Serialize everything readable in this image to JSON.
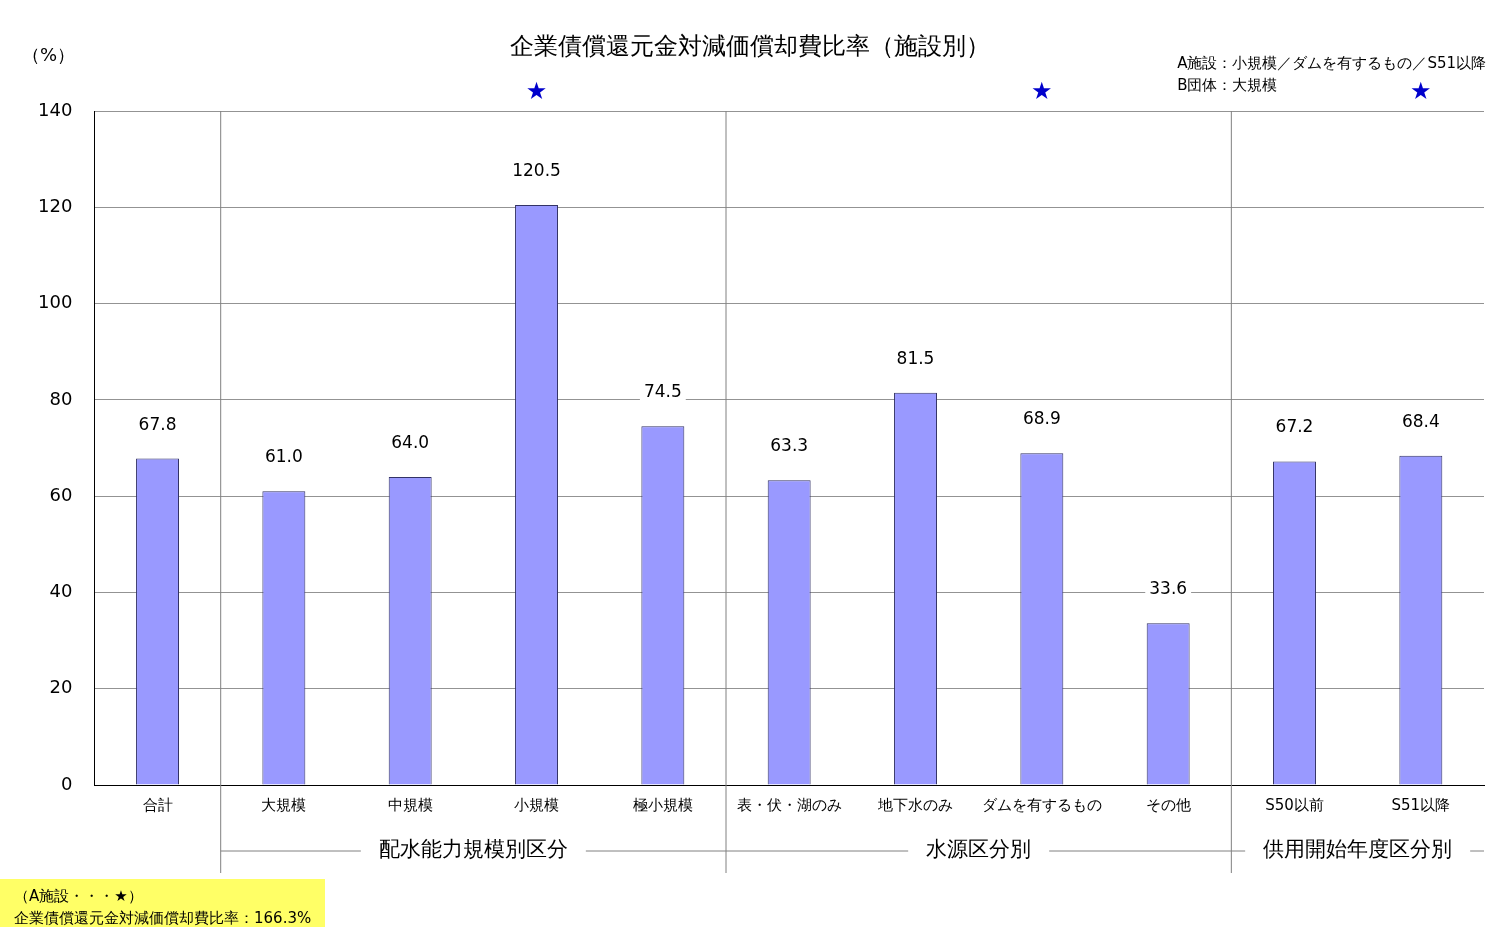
{
  "chart_data": {
    "type": "bar",
    "title": "企業債償還元金対減価償却費比率（施設別）",
    "ylabel": "（%）",
    "categories": [
      "合計",
      "大規模",
      "中規模",
      "小規模",
      "極小規模",
      "表・伏・湖のみ",
      "地下水のみ",
      "ダムを有するもの",
      "その他",
      "S50以前",
      "S51以降"
    ],
    "values": [
      67.8,
      61.0,
      64.0,
      120.5,
      74.5,
      63.3,
      81.5,
      68.9,
      33.6,
      67.2,
      68.4
    ],
    "value_labels": [
      "67.8",
      "61.0",
      "64.0",
      "120.5",
      "74.5",
      "63.3",
      "81.5",
      "68.9",
      "33.6",
      "67.2",
      "68.4"
    ],
    "color": "#9999ff",
    "ylim": [
      0,
      140
    ],
    "yticks": [
      0,
      20,
      40,
      60,
      80,
      100,
      120,
      140
    ],
    "grid": "y",
    "legend": false,
    "annotations": [
      "A施設：小規模／ダムを有するもの／S51以降",
      "B団体：大規模",
      "配水能力規模別区分",
      "水源区分別",
      "供用開始年度区分別",
      "（A施設・・・★）",
      "企業債償還元金対減価償却費比率：166.3%",
      "★",
      "★",
      "★"
    ]
  }
}
